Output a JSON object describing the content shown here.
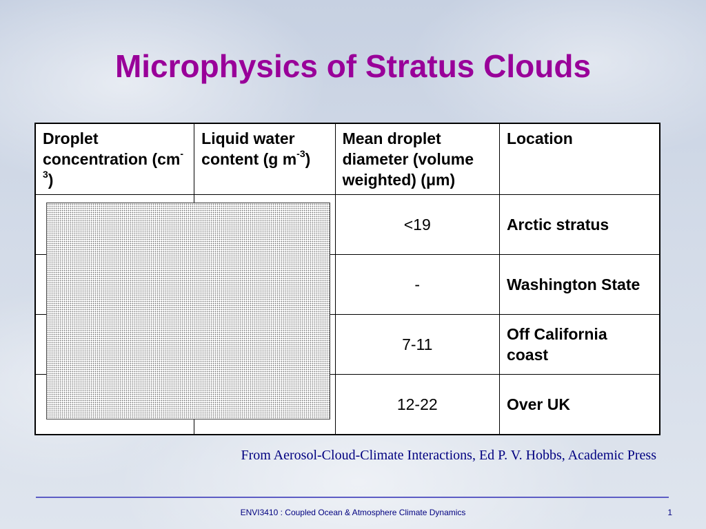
{
  "slide": {
    "title": "Microphysics of Stratus Clouds",
    "source_note": "From Aerosol-Cloud-Climate Interactions, Ed P. V. Hobbs, Academic Press",
    "footer": "ENVI3410 : Coupled Ocean & Atmosphere Climate Dynamics",
    "page_number": "1"
  },
  "table": {
    "headers": [
      {
        "text": "Droplet concentration (cm",
        "sup": "-3",
        "suffix": ")"
      },
      {
        "text": "Liquid water content (g m",
        "sup": "-3",
        "suffix": ")"
      },
      {
        "text": "Mean droplet diameter (volume weighted) (",
        "greek": "μ",
        "suffix": "m)"
      },
      {
        "text": "Location"
      }
    ],
    "rows": [
      {
        "droplet_concentration": "",
        "liquid_water_content": "",
        "mean_diameter": "<19",
        "location": "Arctic stratus"
      },
      {
        "droplet_concentration": "",
        "liquid_water_content": "",
        "mean_diameter": "-",
        "location": "Washington State"
      },
      {
        "droplet_concentration": "",
        "liquid_water_content": "",
        "mean_diameter": "7-11",
        "location": "Off California coast"
      },
      {
        "droplet_concentration": "",
        "liquid_water_content": "",
        "mean_diameter": "12-22",
        "location": "Over UK"
      }
    ]
  },
  "colors": {
    "title": "#990099",
    "source_note": "#000080",
    "footer": "#000080",
    "rule": "#5c5cc4"
  }
}
